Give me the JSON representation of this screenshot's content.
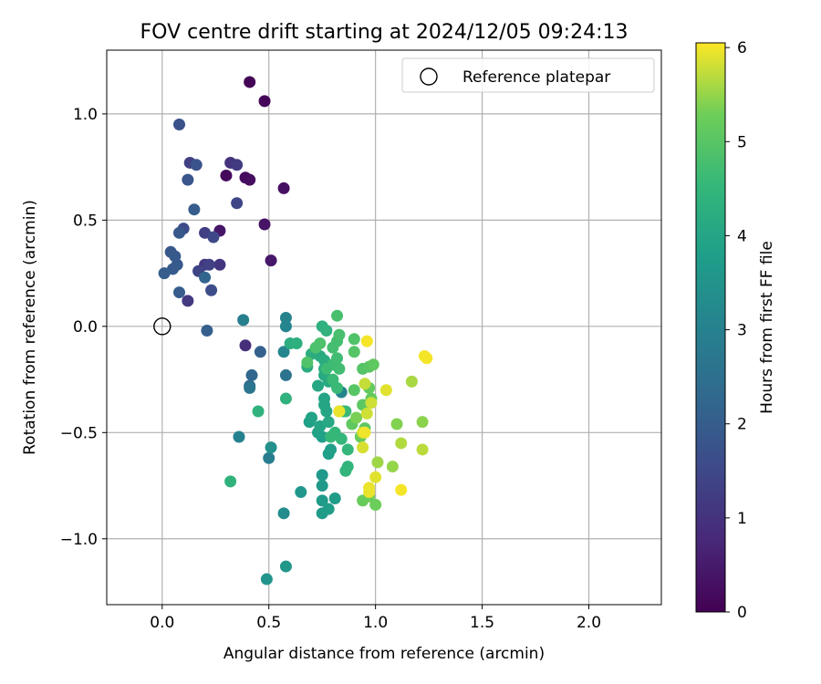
{
  "chart_data": {
    "type": "scatter",
    "title": "FOV centre drift starting at 2024/12/05 09:24:13",
    "xlabel": "Angular distance from reference (arcmin)",
    "ylabel": "Rotation from reference (arcmin)",
    "xlim": [
      -0.26,
      2.34
    ],
    "ylim": [
      -1.31,
      1.3
    ],
    "x_ticks": [
      0.0,
      0.5,
      1.0,
      1.5,
      2.0
    ],
    "x_tick_labels": [
      "0.0",
      "0.5",
      "1.0",
      "1.5",
      "2.0"
    ],
    "y_ticks": [
      -1.0,
      -0.5,
      0.0,
      0.5,
      1.0
    ],
    "y_tick_labels": [
      "−1.0",
      "−0.5",
      "0.0",
      "0.5",
      "1.0"
    ],
    "grid": true,
    "legend": {
      "position": "top-right",
      "entries": [
        "Reference platepar"
      ]
    },
    "reference_point": {
      "x": 0.0,
      "y": 0.0
    },
    "colorbar": {
      "label": "Hours from first FF file",
      "range": [
        0,
        6.05
      ],
      "ticks": [
        0,
        1,
        2,
        3,
        4,
        5,
        6
      ],
      "tick_labels": [
        "0",
        "1",
        "2",
        "3",
        "4",
        "5",
        "6"
      ],
      "colormap": "viridis"
    },
    "points": [
      {
        "x": 0.41,
        "y": 1.15,
        "t": 0.05
      },
      {
        "x": 0.48,
        "y": 1.06,
        "t": 0.1
      },
      {
        "x": 0.3,
        "y": 0.71,
        "t": 0.15
      },
      {
        "x": 0.39,
        "y": 0.7,
        "t": 0.2
      },
      {
        "x": 0.41,
        "y": 0.69,
        "t": 0.25
      },
      {
        "x": 0.57,
        "y": 0.65,
        "t": 0.3
      },
      {
        "x": 0.48,
        "y": 0.48,
        "t": 0.35
      },
      {
        "x": 0.27,
        "y": 0.45,
        "t": 0.4
      },
      {
        "x": 0.51,
        "y": 0.31,
        "t": 0.45
      },
      {
        "x": 0.39,
        "y": -0.09,
        "t": 0.9
      },
      {
        "x": 0.32,
        "y": 0.77,
        "t": 1.0
      },
      {
        "x": 0.27,
        "y": 0.29,
        "t": 1.05
      },
      {
        "x": 0.2,
        "y": 0.29,
        "t": 1.1
      },
      {
        "x": 0.12,
        "y": 0.12,
        "t": 1.15
      },
      {
        "x": 0.35,
        "y": 0.76,
        "t": 1.2
      },
      {
        "x": 0.2,
        "y": 0.44,
        "t": 1.25
      },
      {
        "x": 0.13,
        "y": 0.77,
        "t": 1.3
      },
      {
        "x": 0.22,
        "y": 0.29,
        "t": 1.35
      },
      {
        "x": 0.17,
        "y": 0.26,
        "t": 1.4
      },
      {
        "x": 0.35,
        "y": 0.58,
        "t": 1.45
      },
      {
        "x": 0.24,
        "y": 0.42,
        "t": 1.5
      },
      {
        "x": 0.1,
        "y": 0.46,
        "t": 1.55
      },
      {
        "x": 0.23,
        "y": 0.17,
        "t": 1.6
      },
      {
        "x": 0.08,
        "y": 0.95,
        "t": 1.7
      },
      {
        "x": 0.16,
        "y": 0.76,
        "t": 1.75
      },
      {
        "x": 0.12,
        "y": 0.69,
        "t": 1.8
      },
      {
        "x": 0.08,
        "y": 0.44,
        "t": 1.85
      },
      {
        "x": 0.04,
        "y": 0.35,
        "t": 1.85
      },
      {
        "x": 0.06,
        "y": 0.33,
        "t": 1.9
      },
      {
        "x": 0.07,
        "y": 0.29,
        "t": 1.9
      },
      {
        "x": 0.05,
        "y": 0.27,
        "t": 1.95
      },
      {
        "x": 0.01,
        "y": 0.25,
        "t": 2.0
      },
      {
        "x": 0.08,
        "y": 0.16,
        "t": 2.0
      },
      {
        "x": 0.15,
        "y": 0.55,
        "t": 2.0
      },
      {
        "x": 0.21,
        "y": -0.02,
        "t": 2.05
      },
      {
        "x": 0.46,
        "y": -0.12,
        "t": 2.1
      },
      {
        "x": 0.2,
        "y": 0.23,
        "t": 2.2
      },
      {
        "x": 0.42,
        "y": -0.23,
        "t": 2.25
      },
      {
        "x": 0.41,
        "y": -0.28,
        "t": 2.4
      },
      {
        "x": 0.58,
        "y": -0.23,
        "t": 2.6
      },
      {
        "x": 0.41,
        "y": -0.29,
        "t": 2.65
      },
      {
        "x": 0.5,
        "y": -0.62,
        "t": 2.9
      },
      {
        "x": 0.38,
        "y": 0.03,
        "t": 2.95
      },
      {
        "x": 0.36,
        "y": -0.52,
        "t": 3.0
      },
      {
        "x": 0.58,
        "y": 0.04,
        "t": 3.05
      },
      {
        "x": 0.58,
        "y": 0.0,
        "t": 3.1
      },
      {
        "x": 0.57,
        "y": -0.12,
        "t": 3.1
      },
      {
        "x": 0.84,
        "y": -0.31,
        "t": 3.1
      },
      {
        "x": 0.57,
        "y": -0.88,
        "t": 3.3
      },
      {
        "x": 0.51,
        "y": -0.57,
        "t": 3.4
      },
      {
        "x": 0.49,
        "y": -1.19,
        "t": 3.5
      },
      {
        "x": 0.58,
        "y": -1.13,
        "t": 3.6
      },
      {
        "x": 0.65,
        "y": -0.78,
        "t": 3.6
      },
      {
        "x": 0.75,
        "y": -0.7,
        "t": 3.65
      },
      {
        "x": 0.75,
        "y": -0.75,
        "t": 3.65
      },
      {
        "x": 0.75,
        "y": -0.82,
        "t": 3.7
      },
      {
        "x": 0.75,
        "y": -0.88,
        "t": 3.7
      },
      {
        "x": 0.78,
        "y": -0.86,
        "t": 3.75
      },
      {
        "x": 0.81,
        "y": -0.81,
        "t": 3.75
      },
      {
        "x": 0.75,
        "y": -0.52,
        "t": 3.8
      },
      {
        "x": 0.78,
        "y": -0.6,
        "t": 3.8
      },
      {
        "x": 0.79,
        "y": -0.58,
        "t": 3.8
      },
      {
        "x": 0.69,
        "y": -0.45,
        "t": 3.85
      },
      {
        "x": 0.7,
        "y": -0.43,
        "t": 3.9
      },
      {
        "x": 0.73,
        "y": -0.5,
        "t": 3.9
      },
      {
        "x": 0.74,
        "y": -0.47,
        "t": 3.95
      },
      {
        "x": 0.76,
        "y": -0.34,
        "t": 3.95
      },
      {
        "x": 0.76,
        "y": -0.37,
        "t": 4.0
      },
      {
        "x": 0.77,
        "y": -0.4,
        "t": 4.0
      },
      {
        "x": 0.78,
        "y": -0.45,
        "t": 4.05
      },
      {
        "x": 0.73,
        "y": -0.28,
        "t": 4.05
      },
      {
        "x": 0.76,
        "y": -0.2,
        "t": 4.1
      },
      {
        "x": 0.76,
        "y": -0.23,
        "t": 4.1
      },
      {
        "x": 0.78,
        "y": -0.26,
        "t": 4.15
      },
      {
        "x": 0.74,
        "y": -0.14,
        "t": 4.15
      },
      {
        "x": 0.76,
        "y": -0.16,
        "t": 4.2
      },
      {
        "x": 0.68,
        "y": -0.19,
        "t": 4.2
      },
      {
        "x": 0.7,
        "y": -0.13,
        "t": 4.25
      },
      {
        "x": 0.6,
        "y": -0.08,
        "t": 4.25
      },
      {
        "x": 0.63,
        "y": -0.08,
        "t": 4.3
      },
      {
        "x": 0.75,
        "y": 0.0,
        "t": 4.3
      },
      {
        "x": 0.77,
        "y": -0.02,
        "t": 4.35
      },
      {
        "x": 0.58,
        "y": -0.34,
        "t": 4.35
      },
      {
        "x": 0.45,
        "y": -0.4,
        "t": 4.4
      },
      {
        "x": 0.32,
        "y": -0.73,
        "t": 4.4
      },
      {
        "x": 0.87,
        "y": -0.66,
        "t": 4.45
      },
      {
        "x": 0.86,
        "y": -0.68,
        "t": 4.45
      },
      {
        "x": 0.87,
        "y": -0.58,
        "t": 4.5
      },
      {
        "x": 0.84,
        "y": -0.53,
        "t": 4.5
      },
      {
        "x": 0.81,
        "y": -0.5,
        "t": 4.5
      },
      {
        "x": 0.79,
        "y": -0.52,
        "t": 4.55
      },
      {
        "x": 0.85,
        "y": -0.4,
        "t": 4.55
      },
      {
        "x": 0.86,
        "y": -0.4,
        "t": 4.6
      },
      {
        "x": 0.82,
        "y": -0.29,
        "t": 4.6
      },
      {
        "x": 0.8,
        "y": -0.25,
        "t": 4.6
      },
      {
        "x": 0.77,
        "y": -0.2,
        "t": 4.65
      },
      {
        "x": 0.8,
        "y": -0.18,
        "t": 4.65
      },
      {
        "x": 0.83,
        "y": -0.2,
        "t": 4.7
      },
      {
        "x": 0.82,
        "y": -0.15,
        "t": 4.7
      },
      {
        "x": 0.8,
        "y": -0.1,
        "t": 4.75
      },
      {
        "x": 0.82,
        "y": -0.07,
        "t": 4.75
      },
      {
        "x": 0.83,
        "y": -0.04,
        "t": 4.8
      },
      {
        "x": 0.82,
        "y": 0.05,
        "t": 4.8
      },
      {
        "x": 0.74,
        "y": -0.08,
        "t": 4.85
      },
      {
        "x": 0.72,
        "y": -0.1,
        "t": 4.85
      },
      {
        "x": 0.68,
        "y": -0.17,
        "t": 4.9
      },
      {
        "x": 0.9,
        "y": -0.06,
        "t": 4.9
      },
      {
        "x": 0.9,
        "y": -0.12,
        "t": 4.95
      },
      {
        "x": 0.94,
        "y": -0.2,
        "t": 4.95
      },
      {
        "x": 0.97,
        "y": -0.19,
        "t": 5.0
      },
      {
        "x": 0.9,
        "y": -0.3,
        "t": 5.0
      },
      {
        "x": 0.94,
        "y": -0.37,
        "t": 5.05
      },
      {
        "x": 0.95,
        "y": -0.48,
        "t": 5.05
      },
      {
        "x": 0.89,
        "y": -0.46,
        "t": 5.1
      },
      {
        "x": 0.99,
        "y": -0.18,
        "t": 5.1
      },
      {
        "x": 0.97,
        "y": -0.29,
        "t": 5.15
      },
      {
        "x": 0.98,
        "y": -0.34,
        "t": 5.15
      },
      {
        "x": 0.93,
        "y": -0.52,
        "t": 5.2
      },
      {
        "x": 0.94,
        "y": -0.82,
        "t": 5.2
      },
      {
        "x": 0.97,
        "y": -0.8,
        "t": 5.25
      },
      {
        "x": 1.0,
        "y": -0.84,
        "t": 5.25
      },
      {
        "x": 0.83,
        "y": -0.4,
        "t": 5.3
      },
      {
        "x": 0.91,
        "y": -0.43,
        "t": 5.35
      },
      {
        "x": 1.1,
        "y": -0.46,
        "t": 5.4
      },
      {
        "x": 1.22,
        "y": -0.45,
        "t": 5.45
      },
      {
        "x": 1.08,
        "y": -0.66,
        "t": 5.5
      },
      {
        "x": 1.01,
        "y": -0.64,
        "t": 5.55
      },
      {
        "x": 1.17,
        "y": -0.26,
        "t": 5.6
      },
      {
        "x": 1.12,
        "y": -0.55,
        "t": 5.65
      },
      {
        "x": 1.22,
        "y": -0.58,
        "t": 5.7
      },
      {
        "x": 0.95,
        "y": -0.27,
        "t": 5.75
      },
      {
        "x": 0.98,
        "y": -0.36,
        "t": 5.8
      },
      {
        "x": 0.96,
        "y": -0.41,
        "t": 5.8
      },
      {
        "x": 0.94,
        "y": -0.5,
        "t": 5.85
      },
      {
        "x": 0.94,
        "y": -0.57,
        "t": 5.85
      },
      {
        "x": 1.05,
        "y": -0.3,
        "t": 5.9
      },
      {
        "x": 1.0,
        "y": -0.71,
        "t": 5.9
      },
      {
        "x": 0.97,
        "y": -0.76,
        "t": 5.95
      },
      {
        "x": 0.97,
        "y": -0.78,
        "t": 5.95
      },
      {
        "x": 1.12,
        "y": -0.77,
        "t": 6.0
      },
      {
        "x": 0.96,
        "y": -0.07,
        "t": 6.0
      },
      {
        "x": 1.23,
        "y": -0.14,
        "t": 6.0
      },
      {
        "x": 1.24,
        "y": -0.15,
        "t": 6.0
      },
      {
        "x": 0.83,
        "y": -0.4,
        "t": 5.95
      },
      {
        "x": 0.95,
        "y": -0.5,
        "t": 5.98
      }
    ]
  }
}
